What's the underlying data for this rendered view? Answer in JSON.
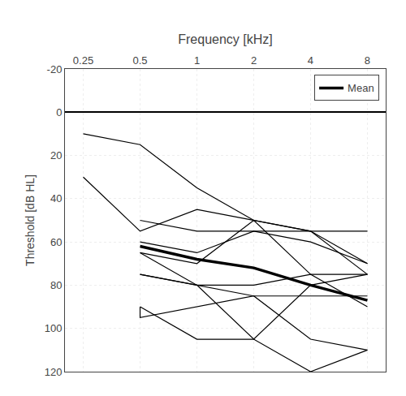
{
  "chart_data": {
    "type": "line",
    "xlabel": "Frequency [kHz]",
    "ylabel": "Threshold [dB HL]",
    "log": "x",
    "xlim": [
      0.2,
      10
    ],
    "xticks": [
      0.25,
      0.5,
      1,
      2,
      4,
      8
    ],
    "ylim": [
      120,
      -20
    ],
    "yticks": [
      -20,
      0,
      20,
      40,
      60,
      80,
      100,
      120
    ],
    "grid": true,
    "legend": "upper right",
    "series": [
      {
        "color": "#000000",
        "x": [
          0.25,
          0.5,
          1,
          2,
          4,
          8
        ],
        "values": [
          10,
          15,
          35,
          50,
          55,
          70
        ]
      },
      {
        "color": "#000000",
        "x": [
          0.25,
          0.5,
          1,
          2,
          4,
          8
        ],
        "values": [
          30,
          55,
          45,
          50,
          55,
          75
        ]
      },
      {
        "color": "#000000",
        "x": [
          0.5,
          1,
          2,
          4,
          8
        ],
        "values": [
          50,
          55,
          55,
          55,
          55
        ]
      },
      {
        "color": "#000000",
        "x": [
          0.5,
          1,
          2,
          4,
          8
        ],
        "values": [
          65,
          70,
          50,
          75,
          90
        ]
      },
      {
        "color": "#000000",
        "x": [
          0.5,
          1,
          2,
          4,
          8
        ],
        "values": [
          60,
          65,
          55,
          60,
          70
        ]
      },
      {
        "color": "#000000",
        "x": [
          0.5,
          1,
          2,
          4,
          8
        ],
        "values": [
          65,
          80,
          80,
          75,
          75
        ]
      },
      {
        "color": "#000000",
        "x": [
          0.5,
          1,
          2,
          4,
          8
        ],
        "values": [
          75,
          80,
          105,
          80,
          75
        ]
      },
      {
        "color": "#000000",
        "x": [
          0.5,
          1,
          2,
          4,
          8
        ],
        "values": [
          75,
          80,
          85,
          85,
          85
        ]
      },
      {
        "color": "#000000",
        "x": [
          0.5,
          1,
          2,
          4,
          8
        ],
        "values": [
          90,
          105,
          105,
          120,
          110
        ]
      },
      {
        "color": "#000000",
        "x": [
          0.5,
          0.5,
          2,
          4,
          8
        ],
        "values": [
          90,
          95,
          85,
          105,
          110
        ]
      },
      {
        "name": "Mean",
        "color": "#000000",
        "x": [
          0.5,
          1,
          2,
          4,
          8
        ],
        "values": [
          62,
          68,
          72,
          80,
          87
        ]
      }
    ]
  }
}
